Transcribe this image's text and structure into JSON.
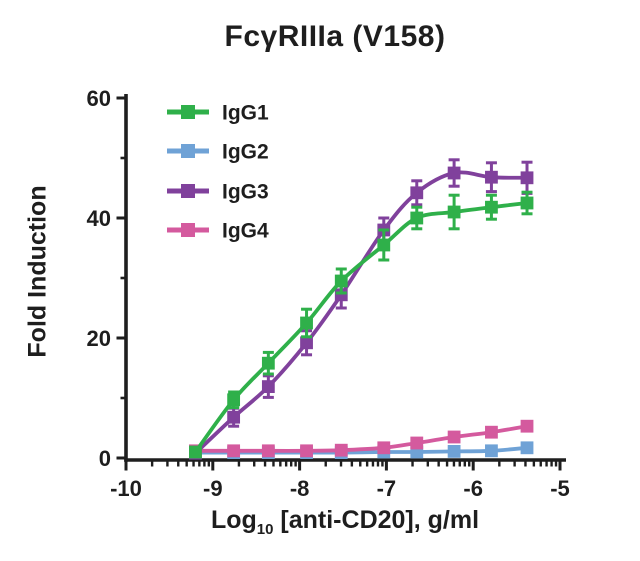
{
  "chart_data": {
    "type": "line",
    "title": "FcγRIIIa (V158)",
    "ylabel": "Fold Induction",
    "xlabel": {
      "prefix": "Log",
      "sub": "10",
      "suffix": " [anti-CD20], g/ml"
    },
    "xlim": [
      -10,
      -5
    ],
    "ylim": [
      0,
      60
    ],
    "x_scale": "log10",
    "grid": false,
    "legend_position": "top-left-inside",
    "axis_color": "#1e1e1e",
    "background": "#ffffff",
    "x_major_ticks": [
      -10,
      -9,
      -8,
      -7,
      -6,
      -5
    ],
    "x_major_tick_labels": [
      "-10",
      "-9",
      "-8",
      "-7",
      "-6",
      "-5"
    ],
    "y_major_ticks": [
      0,
      20,
      40,
      60
    ],
    "y_major_tick_labels": [
      "0",
      "20",
      "40",
      "60"
    ],
    "y_minor_ticks": [
      10,
      30,
      50
    ],
    "x": [
      -9.2,
      -8.76,
      -8.36,
      -7.92,
      -7.52,
      -7.03,
      -6.65,
      -6.22,
      -5.79,
      -5.38
    ],
    "series": [
      {
        "name": "IgG1",
        "color": "#2fb04a",
        "marker": "square",
        "values": [
          1.0,
          9.7,
          15.8,
          22.5,
          29.5,
          35.5,
          40.0,
          41.0,
          41.8,
          42.5
        ],
        "errors": [
          0.4,
          1.3,
          1.8,
          2.3,
          2.0,
          2.5,
          1.8,
          2.8,
          2.0,
          1.8
        ]
      },
      {
        "name": "IgG2",
        "color": "#6fa2d6",
        "marker": "square",
        "values": [
          0.9,
          0.9,
          0.9,
          0.9,
          0.9,
          1.0,
          1.0,
          1.1,
          1.2,
          1.7
        ],
        "errors": [
          0.2,
          0.2,
          0.2,
          0.2,
          0.2,
          0.2,
          0.2,
          0.2,
          0.2,
          0.3
        ]
      },
      {
        "name": "IgG3",
        "color": "#80419c",
        "marker": "square",
        "values": [
          0.8,
          6.8,
          11.9,
          19.2,
          27.2,
          38.0,
          44.2,
          47.5,
          46.8,
          46.7
        ],
        "errors": [
          0.4,
          1.5,
          1.8,
          2.0,
          2.2,
          2.0,
          2.0,
          2.2,
          2.4,
          2.6
        ]
      },
      {
        "name": "IgG4",
        "color": "#d45a9e",
        "marker": "square",
        "values": [
          1.2,
          1.2,
          1.2,
          1.2,
          1.3,
          1.7,
          2.5,
          3.5,
          4.3,
          5.3
        ],
        "errors": [
          0.2,
          0.2,
          0.2,
          0.2,
          0.2,
          0.2,
          0.3,
          0.3,
          0.3,
          0.4
        ]
      }
    ]
  }
}
